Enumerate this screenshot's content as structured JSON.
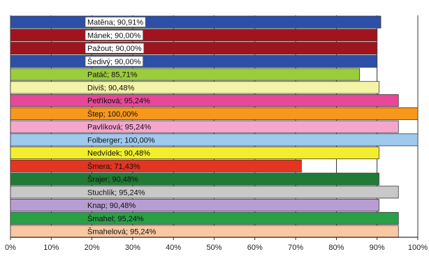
{
  "chart_data": {
    "type": "bar",
    "orientation": "horizontal",
    "categories": [
      "Matěna",
      "Mánek",
      "Pažout",
      "Šedivý",
      "Patáč",
      "Diviš",
      "Petříková",
      "Štep",
      "Pavlíková",
      "Folberger",
      "Nedvídek",
      "Šmera",
      "Šrajer",
      "Stuchlík",
      "Knap",
      "Šmahel",
      "Šmahelová"
    ],
    "values": [
      90.91,
      90.0,
      90.0,
      90.0,
      85.71,
      90.48,
      95.24,
      100.0,
      95.24,
      100.0,
      90.48,
      71.43,
      90.48,
      95.24,
      90.48,
      95.24,
      95.24
    ],
    "data_labels": [
      "Matěna; 90,91%",
      "Mánek; 90,00%",
      "Pažout; 90,00%",
      "Šedivý; 90,00%",
      "Patáč; 85,71%",
      "Diviš; 90,48%",
      "Petříková; 95,24%",
      "Štep; 100,00%",
      "Pavlíková; 95,24%",
      "Folberger; 100,00%",
      "Nedvídek; 90,48%",
      "Šmera; 71,43%",
      "Šrajer; 90,48%",
      "Stuchlík; 95,24%",
      "Knap; 90,48%",
      "Šmahel; 95,24%",
      "Šmahelová; 95,24%"
    ],
    "labels_boxed": [
      true,
      true,
      true,
      true,
      false,
      false,
      false,
      false,
      false,
      false,
      false,
      false,
      false,
      false,
      false,
      false,
      false
    ],
    "colors": [
      "#2e4fa8",
      "#a01420",
      "#a01420",
      "#2e4fa8",
      "#9acc3c",
      "#f4f4a8",
      "#e8489a",
      "#f7981d",
      "#f6a6cc",
      "#9fcaee",
      "#f2ee2c",
      "#e43522",
      "#217a35",
      "#c8c8c8",
      "#b89dd2",
      "#2aa046",
      "#f8c8a2"
    ],
    "x_ticks": [
      "0%",
      "10%",
      "20%",
      "30%",
      "40%",
      "50%",
      "60%",
      "70%",
      "80%",
      "90%",
      "100%"
    ],
    "xlim": [
      0,
      100
    ],
    "xlabel": "",
    "ylabel": "",
    "title": "",
    "grid": "vertical",
    "legend": "none"
  }
}
